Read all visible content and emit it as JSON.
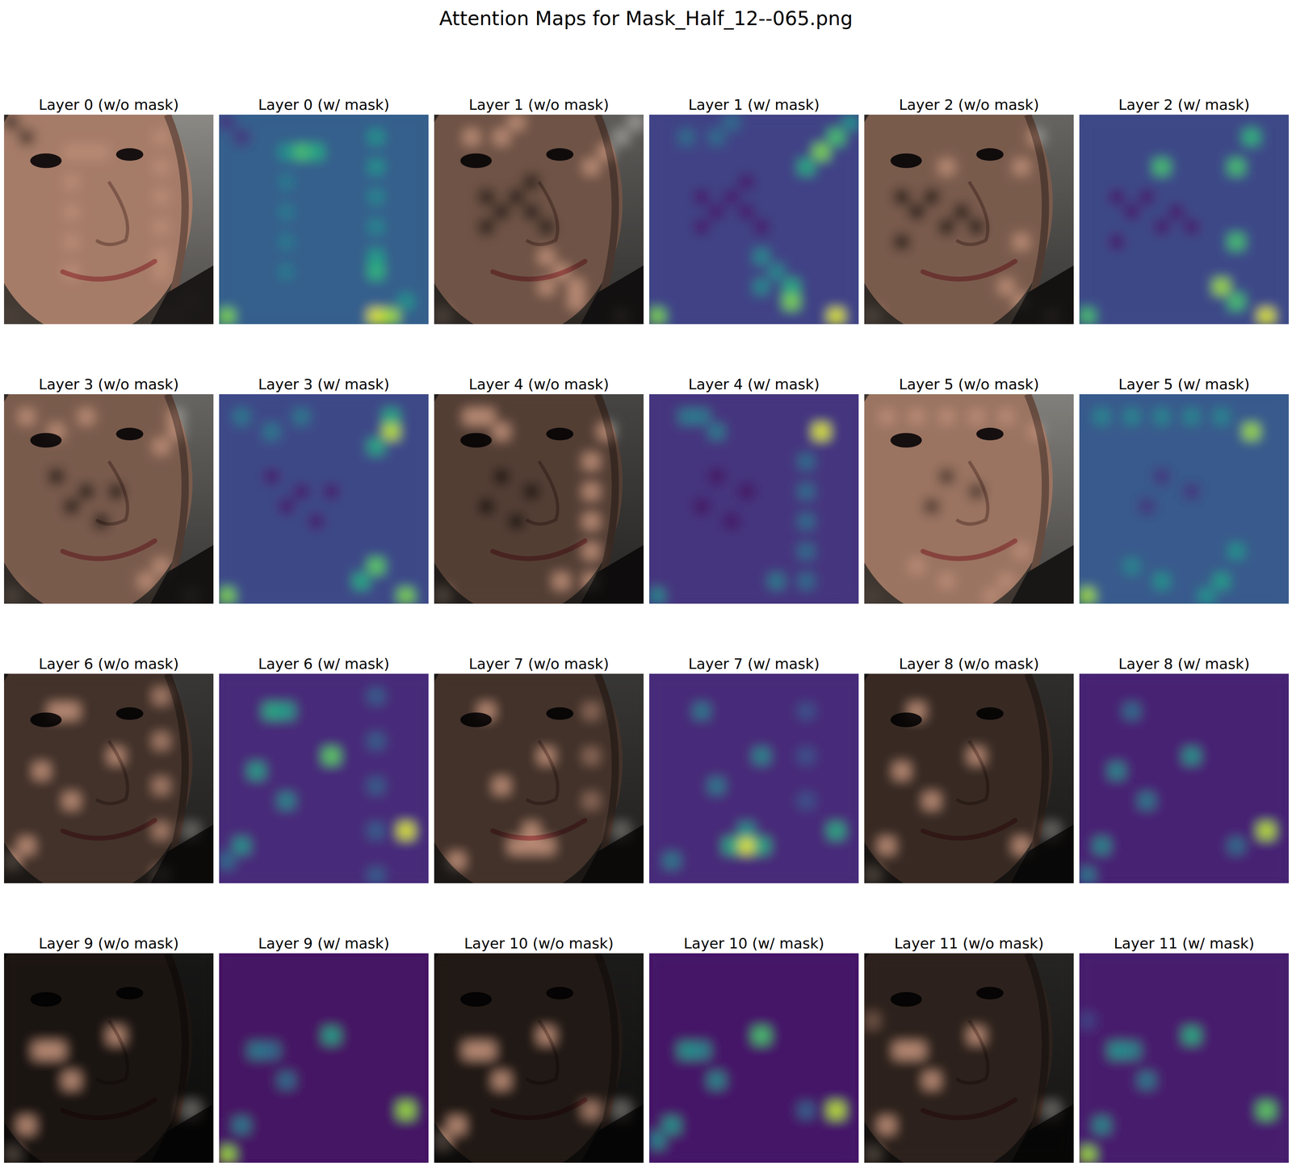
{
  "chart_data": {
    "type": "heatmap",
    "title": "Attention Maps for Mask_Half_12--065.png",
    "vlim": [
      0,
      1
    ],
    "n_rows": 14,
    "n_cols": 14,
    "panels": [
      {
        "title_image": "Layer 0 (w/o mask)",
        "title_map": "Layer 0 (w/ mask)",
        "base": 0.3,
        "cells": [
          [
            13,
            10,
            0.95
          ],
          [
            13,
            11,
            0.85
          ],
          [
            13,
            0,
            0.8
          ],
          [
            2,
            5,
            0.7
          ],
          [
            2,
            6,
            0.6
          ],
          [
            2,
            4,
            0.5
          ],
          [
            1,
            10,
            0.5
          ],
          [
            3,
            10,
            0.5
          ],
          [
            5,
            10,
            0.45
          ],
          [
            7,
            10,
            0.45
          ],
          [
            9,
            10,
            0.55
          ],
          [
            10,
            10,
            0.65
          ],
          [
            4,
            4,
            0.4
          ],
          [
            6,
            4,
            0.4
          ],
          [
            8,
            4,
            0.4
          ],
          [
            10,
            4,
            0.4
          ],
          [
            12,
            12,
            0.5
          ],
          [
            0,
            0,
            0.15
          ],
          [
            1,
            1,
            0.15
          ]
        ]
      },
      {
        "title_image": "Layer 1 (w/o mask)",
        "title_map": "Layer 1 (w/ mask)",
        "base": 0.2,
        "cells": [
          [
            2,
            11,
            0.8
          ],
          [
            1,
            12,
            0.7
          ],
          [
            3,
            10,
            0.6
          ],
          [
            0,
            13,
            0.5
          ],
          [
            13,
            12,
            0.95
          ],
          [
            12,
            9,
            0.8
          ],
          [
            11,
            9,
            0.6
          ],
          [
            13,
            0,
            0.8
          ],
          [
            9,
            7,
            0.45
          ],
          [
            10,
            8,
            0.45
          ],
          [
            11,
            7,
            0.45
          ],
          [
            1,
            2,
            0.35
          ],
          [
            1,
            4,
            0.35
          ],
          [
            0,
            5,
            0.35
          ],
          [
            5,
            3,
            0.08
          ],
          [
            5,
            5,
            0.08
          ],
          [
            6,
            4,
            0.08
          ],
          [
            6,
            6,
            0.08
          ],
          [
            7,
            3,
            0.08
          ],
          [
            7,
            7,
            0.08
          ],
          [
            4,
            6,
            0.08
          ]
        ]
      },
      {
        "title_image": "Layer 2 (w/o mask)",
        "title_map": "Layer 2 (w/ mask)",
        "base": 0.22,
        "cells": [
          [
            11,
            9,
            0.85
          ],
          [
            12,
            10,
            0.7
          ],
          [
            13,
            12,
            0.95
          ],
          [
            13,
            0,
            0.7
          ],
          [
            8,
            10,
            0.7
          ],
          [
            3,
            10,
            0.7
          ],
          [
            1,
            11,
            0.65
          ],
          [
            3,
            5,
            0.7
          ],
          [
            5,
            2,
            0.08
          ],
          [
            5,
            4,
            0.08
          ],
          [
            6,
            3,
            0.08
          ],
          [
            6,
            6,
            0.08
          ],
          [
            7,
            5,
            0.08
          ],
          [
            7,
            7,
            0.08
          ],
          [
            8,
            2,
            0.08
          ]
        ]
      },
      {
        "title_image": "Layer 3 (w/o mask)",
        "title_map": "Layer 3 (w/ mask)",
        "base": 0.22,
        "cells": [
          [
            2,
            11,
            0.9
          ],
          [
            1,
            11,
            0.6
          ],
          [
            3,
            10,
            0.6
          ],
          [
            11,
            10,
            0.75
          ],
          [
            12,
            9,
            0.6
          ],
          [
            13,
            12,
            0.8
          ],
          [
            13,
            0,
            0.8
          ],
          [
            1,
            1,
            0.4
          ],
          [
            2,
            3,
            0.4
          ],
          [
            1,
            5,
            0.4
          ],
          [
            5,
            3,
            0.08
          ],
          [
            6,
            5,
            0.08
          ],
          [
            7,
            4,
            0.08
          ],
          [
            6,
            7,
            0.08
          ],
          [
            8,
            6,
            0.08
          ]
        ]
      },
      {
        "title_image": "Layer 4 (w/o mask)",
        "title_map": "Layer 4 (w/ mask)",
        "base": 0.15,
        "cells": [
          [
            2,
            11,
            0.95
          ],
          [
            1,
            2,
            0.4
          ],
          [
            1,
            3,
            0.4
          ],
          [
            2,
            4,
            0.4
          ],
          [
            4,
            10,
            0.35
          ],
          [
            6,
            10,
            0.35
          ],
          [
            8,
            10,
            0.35
          ],
          [
            10,
            10,
            0.35
          ],
          [
            12,
            10,
            0.35
          ],
          [
            13,
            0,
            0.45
          ],
          [
            12,
            8,
            0.4
          ],
          [
            5,
            4,
            0.05
          ],
          [
            6,
            6,
            0.05
          ],
          [
            7,
            3,
            0.05
          ],
          [
            8,
            5,
            0.05
          ]
        ]
      },
      {
        "title_image": "Layer 5 (w/o mask)",
        "title_map": "Layer 5 (w/ mask)",
        "base": 0.28,
        "cells": [
          [
            2,
            11,
            0.85
          ],
          [
            13,
            0,
            0.85
          ],
          [
            12,
            9,
            0.55
          ],
          [
            13,
            8,
            0.5
          ],
          [
            12,
            5,
            0.5
          ],
          [
            11,
            3,
            0.45
          ],
          [
            1,
            1,
            0.45
          ],
          [
            1,
            3,
            0.45
          ],
          [
            1,
            5,
            0.45
          ],
          [
            1,
            7,
            0.45
          ],
          [
            1,
            9,
            0.45
          ],
          [
            10,
            10,
            0.5
          ],
          [
            5,
            5,
            0.15
          ],
          [
            7,
            4,
            0.15
          ],
          [
            6,
            7,
            0.15
          ]
        ]
      },
      {
        "title_image": "Layer 6 (w/o mask)",
        "title_map": "Layer 6 (w/ mask)",
        "base": 0.12,
        "cells": [
          [
            10,
            12,
            0.95
          ],
          [
            5,
            7,
            0.75
          ],
          [
            2,
            3,
            0.6
          ],
          [
            2,
            4,
            0.55
          ],
          [
            6,
            2,
            0.55
          ],
          [
            8,
            4,
            0.45
          ],
          [
            11,
            1,
            0.5
          ],
          [
            12,
            0,
            0.35
          ],
          [
            1,
            10,
            0.3
          ],
          [
            4,
            10,
            0.3
          ],
          [
            7,
            10,
            0.3
          ],
          [
            10,
            10,
            0.3
          ],
          [
            13,
            10,
            0.3
          ]
        ]
      },
      {
        "title_image": "Layer 7 (w/o mask)",
        "title_map": "Layer 7 (w/ mask)",
        "base": 0.12,
        "cells": [
          [
            11,
            6,
            0.95
          ],
          [
            11,
            5,
            0.6
          ],
          [
            11,
            7,
            0.6
          ],
          [
            10,
            6,
            0.5
          ],
          [
            10,
            12,
            0.6
          ],
          [
            5,
            7,
            0.45
          ],
          [
            2,
            3,
            0.4
          ],
          [
            7,
            4,
            0.4
          ],
          [
            12,
            1,
            0.4
          ],
          [
            2,
            10,
            0.25
          ],
          [
            5,
            10,
            0.25
          ],
          [
            8,
            10,
            0.25
          ]
        ]
      },
      {
        "title_image": "Layer 8 (w/o mask)",
        "title_map": "Layer 8 (w/ mask)",
        "base": 0.1,
        "cells": [
          [
            10,
            12,
            0.9
          ],
          [
            5,
            7,
            0.5
          ],
          [
            6,
            2,
            0.45
          ],
          [
            2,
            3,
            0.35
          ],
          [
            8,
            4,
            0.4
          ],
          [
            11,
            1,
            0.45
          ],
          [
            13,
            0,
            0.4
          ],
          [
            11,
            10,
            0.35
          ]
        ]
      },
      {
        "title_image": "Layer 9 (w/o mask)",
        "title_map": "Layer 9 (w/ mask)",
        "base": 0.05,
        "cells": [
          [
            10,
            12,
            0.85
          ],
          [
            5,
            7,
            0.55
          ],
          [
            6,
            2,
            0.4
          ],
          [
            6,
            3,
            0.35
          ],
          [
            8,
            4,
            0.35
          ],
          [
            11,
            1,
            0.4
          ],
          [
            13,
            0,
            0.85
          ]
        ]
      },
      {
        "title_image": "Layer 10 (w/o mask)",
        "title_map": "Layer 10 (w/ mask)",
        "base": 0.06,
        "cells": [
          [
            10,
            12,
            0.9
          ],
          [
            5,
            7,
            0.7
          ],
          [
            6,
            2,
            0.5
          ],
          [
            6,
            3,
            0.45
          ],
          [
            8,
            4,
            0.45
          ],
          [
            11,
            1,
            0.5
          ],
          [
            12,
            0,
            0.45
          ],
          [
            10,
            10,
            0.3
          ]
        ]
      },
      {
        "title_image": "Layer 11 (w/o mask)",
        "title_map": "Layer 11 (w/ mask)",
        "base": 0.08,
        "cells": [
          [
            10,
            12,
            0.75
          ],
          [
            5,
            7,
            0.6
          ],
          [
            6,
            2,
            0.5
          ],
          [
            6,
            3,
            0.45
          ],
          [
            8,
            4,
            0.4
          ],
          [
            11,
            1,
            0.45
          ],
          [
            13,
            0,
            0.85
          ],
          [
            4,
            0,
            0.2
          ]
        ]
      }
    ]
  }
}
